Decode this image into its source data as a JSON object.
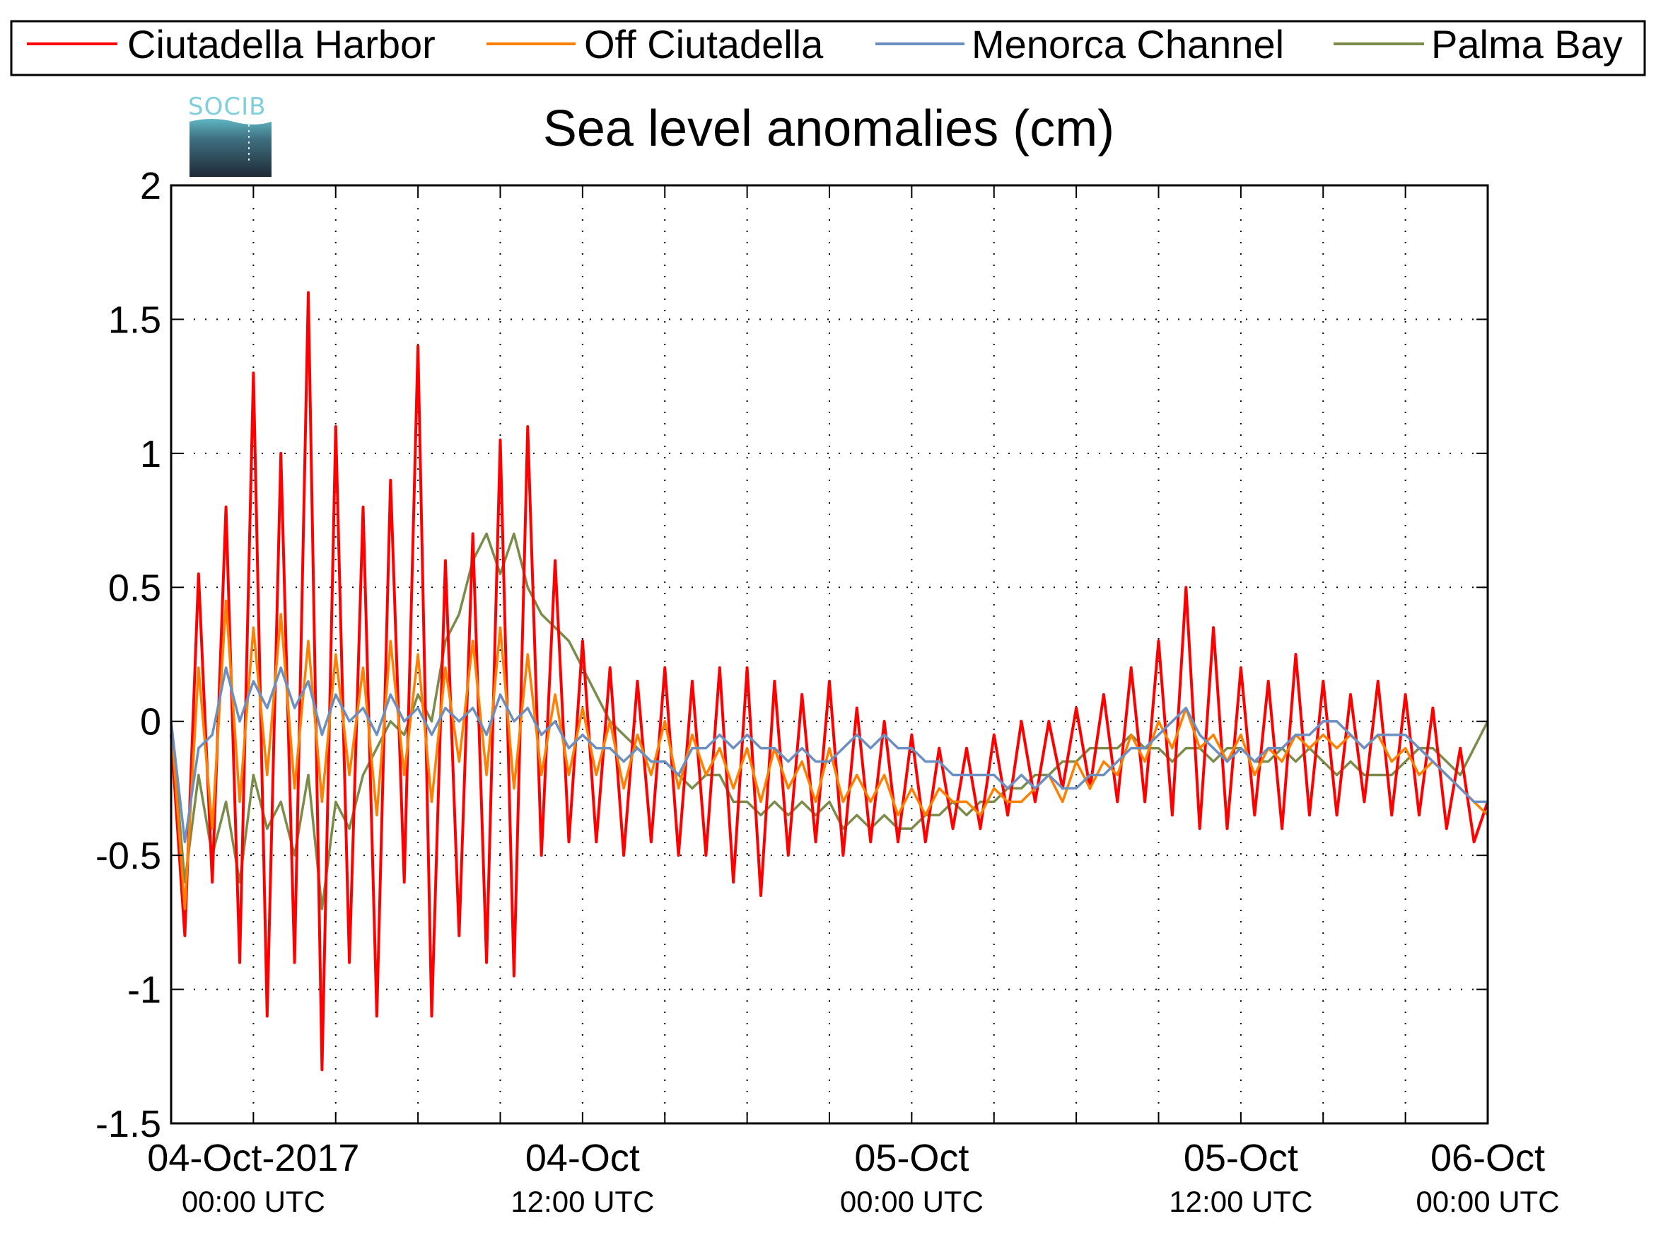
{
  "chart_data": {
    "type": "line",
    "title": "Sea level anomalies (cm)",
    "xlabel": "",
    "ylabel": "",
    "logo_text": "SOCIB",
    "grid": true,
    "legend_position": "top (outside, horizontal)",
    "x_range_hours": [
      -6,
      90
    ],
    "ylim": [
      -1.5,
      2
    ],
    "y_ticks": [
      {
        "value": 2,
        "label": "2"
      },
      {
        "value": 1.5,
        "label": "1.5"
      },
      {
        "value": 1,
        "label": "1"
      },
      {
        "value": 0.5,
        "label": "0.5"
      },
      {
        "value": 0,
        "label": "0"
      },
      {
        "value": -0.5,
        "label": "-0.5"
      },
      {
        "value": -1,
        "label": "-1"
      },
      {
        "value": -1.5,
        "label": "-1.5"
      }
    ],
    "x_ticks": [
      {
        "hour": 0,
        "date": "04-Oct-2017",
        "time": "00:00 UTC"
      },
      {
        "hour": 24,
        "date": "04-Oct",
        "time": "12:00 UTC"
      },
      {
        "hour": 48,
        "date": "05-Oct",
        "time": "00:00 UTC"
      },
      {
        "hour": 72,
        "date": "05-Oct",
        "time": "12:00 UTC"
      },
      {
        "hour": 90,
        "date": "06-Oct",
        "time": "00:00 UTC"
      }
    ],
    "series": [
      {
        "name": "Ciutadella Harbor",
        "color": "#ff0000",
        "x": [
          -6,
          -5,
          -4,
          -3,
          -2,
          -1,
          0,
          1,
          2,
          3,
          4,
          5,
          6,
          7,
          8,
          9,
          10,
          11,
          12,
          13,
          14,
          15,
          16,
          17,
          18,
          19,
          20,
          21,
          22,
          23,
          24,
          25,
          26,
          27,
          28,
          29,
          30,
          31,
          32,
          33,
          34,
          35,
          36,
          37,
          38,
          39,
          40,
          41,
          42,
          43,
          44,
          45,
          46,
          47,
          48,
          49,
          50,
          51,
          52,
          53,
          54,
          55,
          56,
          57,
          58,
          59,
          60,
          61,
          62,
          63,
          64,
          65,
          66,
          67,
          68,
          69,
          70,
          71,
          72,
          73,
          74,
          75,
          76,
          77,
          78,
          79,
          80,
          81,
          82,
          83,
          84,
          85,
          86,
          87,
          88,
          89,
          90
        ],
        "y": [
          -0.05,
          -0.8,
          0.55,
          -0.6,
          0.8,
          -0.9,
          1.3,
          -1.1,
          1.0,
          -0.9,
          1.6,
          -1.3,
          1.1,
          -0.9,
          0.8,
          -1.1,
          0.9,
          -0.6,
          1.4,
          -1.1,
          0.6,
          -0.8,
          0.7,
          -0.9,
          1.05,
          -0.95,
          1.1,
          -0.5,
          0.6,
          -0.45,
          0.3,
          -0.45,
          0.2,
          -0.5,
          0.15,
          -0.45,
          0.2,
          -0.5,
          0.15,
          -0.5,
          0.2,
          -0.6,
          0.2,
          -0.65,
          0.15,
          -0.5,
          0.1,
          -0.45,
          0.15,
          -0.5,
          0.05,
          -0.45,
          0.0,
          -0.45,
          -0.05,
          -0.45,
          -0.1,
          -0.4,
          -0.1,
          -0.4,
          -0.05,
          -0.35,
          0.0,
          -0.3,
          0.0,
          -0.25,
          0.05,
          -0.25,
          0.1,
          -0.3,
          0.2,
          -0.3,
          0.3,
          -0.35,
          0.5,
          -0.4,
          0.35,
          -0.4,
          0.2,
          -0.35,
          0.15,
          -0.4,
          0.25,
          -0.35,
          0.15,
          -0.35,
          0.1,
          -0.3,
          0.15,
          -0.35,
          0.1,
          -0.35,
          0.05,
          -0.4,
          -0.1,
          -0.45,
          -0.3
        ]
      },
      {
        "name": "Off Ciutadella",
        "color": "#ff8000",
        "x": [
          -6,
          -5,
          -4,
          -3,
          -2,
          -1,
          0,
          1,
          2,
          3,
          4,
          5,
          6,
          7,
          8,
          9,
          10,
          11,
          12,
          13,
          14,
          15,
          16,
          17,
          18,
          19,
          20,
          21,
          22,
          23,
          24,
          25,
          26,
          27,
          28,
          29,
          30,
          31,
          32,
          33,
          34,
          35,
          36,
          37,
          38,
          39,
          40,
          41,
          42,
          43,
          44,
          45,
          46,
          47,
          48,
          49,
          50,
          51,
          52,
          53,
          54,
          55,
          56,
          57,
          58,
          59,
          60,
          61,
          62,
          63,
          64,
          65,
          66,
          67,
          68,
          69,
          70,
          71,
          72,
          73,
          74,
          75,
          76,
          77,
          78,
          79,
          80,
          81,
          82,
          83,
          84,
          85,
          86,
          87,
          88,
          89,
          90
        ],
        "y": [
          0.0,
          -0.7,
          0.2,
          -0.4,
          0.45,
          -0.3,
          0.35,
          -0.2,
          0.4,
          -0.25,
          0.3,
          -0.3,
          0.25,
          -0.2,
          0.2,
          -0.35,
          0.3,
          -0.2,
          0.25,
          -0.3,
          0.2,
          -0.15,
          0.3,
          -0.2,
          0.35,
          -0.25,
          0.25,
          -0.2,
          0.1,
          -0.2,
          0.05,
          -0.2,
          0.0,
          -0.25,
          -0.05,
          -0.2,
          0.0,
          -0.25,
          -0.05,
          -0.2,
          -0.1,
          -0.25,
          -0.1,
          -0.3,
          -0.1,
          -0.25,
          -0.15,
          -0.3,
          -0.1,
          -0.3,
          -0.2,
          -0.3,
          -0.2,
          -0.35,
          -0.25,
          -0.35,
          -0.25,
          -0.3,
          -0.3,
          -0.35,
          -0.25,
          -0.3,
          -0.3,
          -0.25,
          -0.2,
          -0.3,
          -0.15,
          -0.25,
          -0.15,
          -0.2,
          -0.05,
          -0.15,
          0.0,
          -0.1,
          0.05,
          -0.1,
          -0.05,
          -0.15,
          -0.05,
          -0.2,
          -0.1,
          -0.15,
          -0.05,
          -0.1,
          -0.05,
          -0.1,
          -0.05,
          -0.1,
          -0.05,
          -0.15,
          -0.1,
          -0.2,
          -0.15,
          -0.2,
          -0.25,
          -0.3,
          -0.35
        ]
      },
      {
        "name": "Menorca Channel",
        "color": "#6a8fc0",
        "x": [
          -6,
          -5,
          -4,
          -3,
          -2,
          -1,
          0,
          1,
          2,
          3,
          4,
          5,
          6,
          7,
          8,
          9,
          10,
          11,
          12,
          13,
          14,
          15,
          16,
          17,
          18,
          19,
          20,
          21,
          22,
          23,
          24,
          25,
          26,
          27,
          28,
          29,
          30,
          31,
          32,
          33,
          34,
          35,
          36,
          37,
          38,
          39,
          40,
          41,
          42,
          43,
          44,
          45,
          46,
          47,
          48,
          49,
          50,
          51,
          52,
          53,
          54,
          55,
          56,
          57,
          58,
          59,
          60,
          61,
          62,
          63,
          64,
          65,
          66,
          67,
          68,
          69,
          70,
          71,
          72,
          73,
          74,
          75,
          76,
          77,
          78,
          79,
          80,
          81,
          82,
          83,
          84,
          85,
          86,
          87,
          88,
          89,
          90
        ],
        "y": [
          0.0,
          -0.45,
          -0.1,
          -0.05,
          0.2,
          0.0,
          0.15,
          0.05,
          0.2,
          0.05,
          0.15,
          -0.05,
          0.1,
          0.0,
          0.05,
          -0.05,
          0.1,
          0.0,
          0.05,
          -0.05,
          0.05,
          0.0,
          0.05,
          -0.05,
          0.1,
          0.0,
          0.05,
          -0.05,
          0.0,
          -0.1,
          -0.05,
          -0.1,
          -0.1,
          -0.15,
          -0.1,
          -0.15,
          -0.15,
          -0.2,
          -0.1,
          -0.1,
          -0.05,
          -0.1,
          -0.05,
          -0.1,
          -0.1,
          -0.15,
          -0.1,
          -0.15,
          -0.15,
          -0.1,
          -0.05,
          -0.1,
          -0.05,
          -0.1,
          -0.1,
          -0.15,
          -0.15,
          -0.2,
          -0.2,
          -0.2,
          -0.2,
          -0.25,
          -0.2,
          -0.25,
          -0.2,
          -0.25,
          -0.25,
          -0.2,
          -0.2,
          -0.15,
          -0.1,
          -0.1,
          -0.05,
          0.0,
          0.05,
          -0.05,
          -0.1,
          -0.15,
          -0.1,
          -0.15,
          -0.1,
          -0.1,
          -0.05,
          -0.05,
          0.0,
          0.0,
          -0.05,
          -0.1,
          -0.05,
          -0.05,
          -0.05,
          -0.1,
          -0.15,
          -0.2,
          -0.25,
          -0.3,
          -0.3
        ]
      },
      {
        "name": "Palma Bay",
        "color": "#7a8b4a",
        "x": [
          -6,
          -5,
          -4,
          -3,
          -2,
          -1,
          0,
          1,
          2,
          3,
          4,
          5,
          6,
          7,
          8,
          9,
          10,
          11,
          12,
          13,
          14,
          15,
          16,
          17,
          18,
          19,
          20,
          21,
          22,
          23,
          24,
          25,
          26,
          27,
          28,
          29,
          30,
          31,
          32,
          33,
          34,
          35,
          36,
          37,
          38,
          39,
          40,
          41,
          42,
          43,
          44,
          45,
          46,
          47,
          48,
          49,
          50,
          51,
          52,
          53,
          54,
          55,
          56,
          57,
          58,
          59,
          60,
          61,
          62,
          63,
          64,
          65,
          66,
          67,
          68,
          69,
          70,
          71,
          72,
          73,
          74,
          75,
          76,
          77,
          78,
          79,
          80,
          81,
          82,
          83,
          84,
          85,
          86,
          87,
          88,
          89,
          90
        ],
        "y": [
          0.0,
          -0.6,
          -0.2,
          -0.5,
          -0.3,
          -0.6,
          -0.2,
          -0.4,
          -0.3,
          -0.5,
          -0.2,
          -0.7,
          -0.3,
          -0.4,
          -0.2,
          -0.1,
          0.0,
          -0.05,
          0.1,
          0.0,
          0.3,
          0.4,
          0.6,
          0.7,
          0.55,
          0.7,
          0.5,
          0.4,
          0.35,
          0.3,
          0.2,
          0.1,
          0.0,
          -0.05,
          -0.1,
          -0.15,
          -0.15,
          -0.2,
          -0.25,
          -0.2,
          -0.2,
          -0.3,
          -0.3,
          -0.35,
          -0.3,
          -0.35,
          -0.3,
          -0.35,
          -0.3,
          -0.4,
          -0.35,
          -0.4,
          -0.35,
          -0.4,
          -0.4,
          -0.35,
          -0.35,
          -0.3,
          -0.35,
          -0.3,
          -0.3,
          -0.25,
          -0.25,
          -0.2,
          -0.2,
          -0.15,
          -0.15,
          -0.1,
          -0.1,
          -0.1,
          -0.05,
          -0.1,
          -0.1,
          -0.15,
          -0.1,
          -0.1,
          -0.15,
          -0.1,
          -0.1,
          -0.15,
          -0.15,
          -0.1,
          -0.15,
          -0.1,
          -0.15,
          -0.2,
          -0.15,
          -0.2,
          -0.2,
          -0.2,
          -0.15,
          -0.1,
          -0.1,
          -0.15,
          -0.2,
          -0.1,
          0.0
        ]
      }
    ]
  }
}
